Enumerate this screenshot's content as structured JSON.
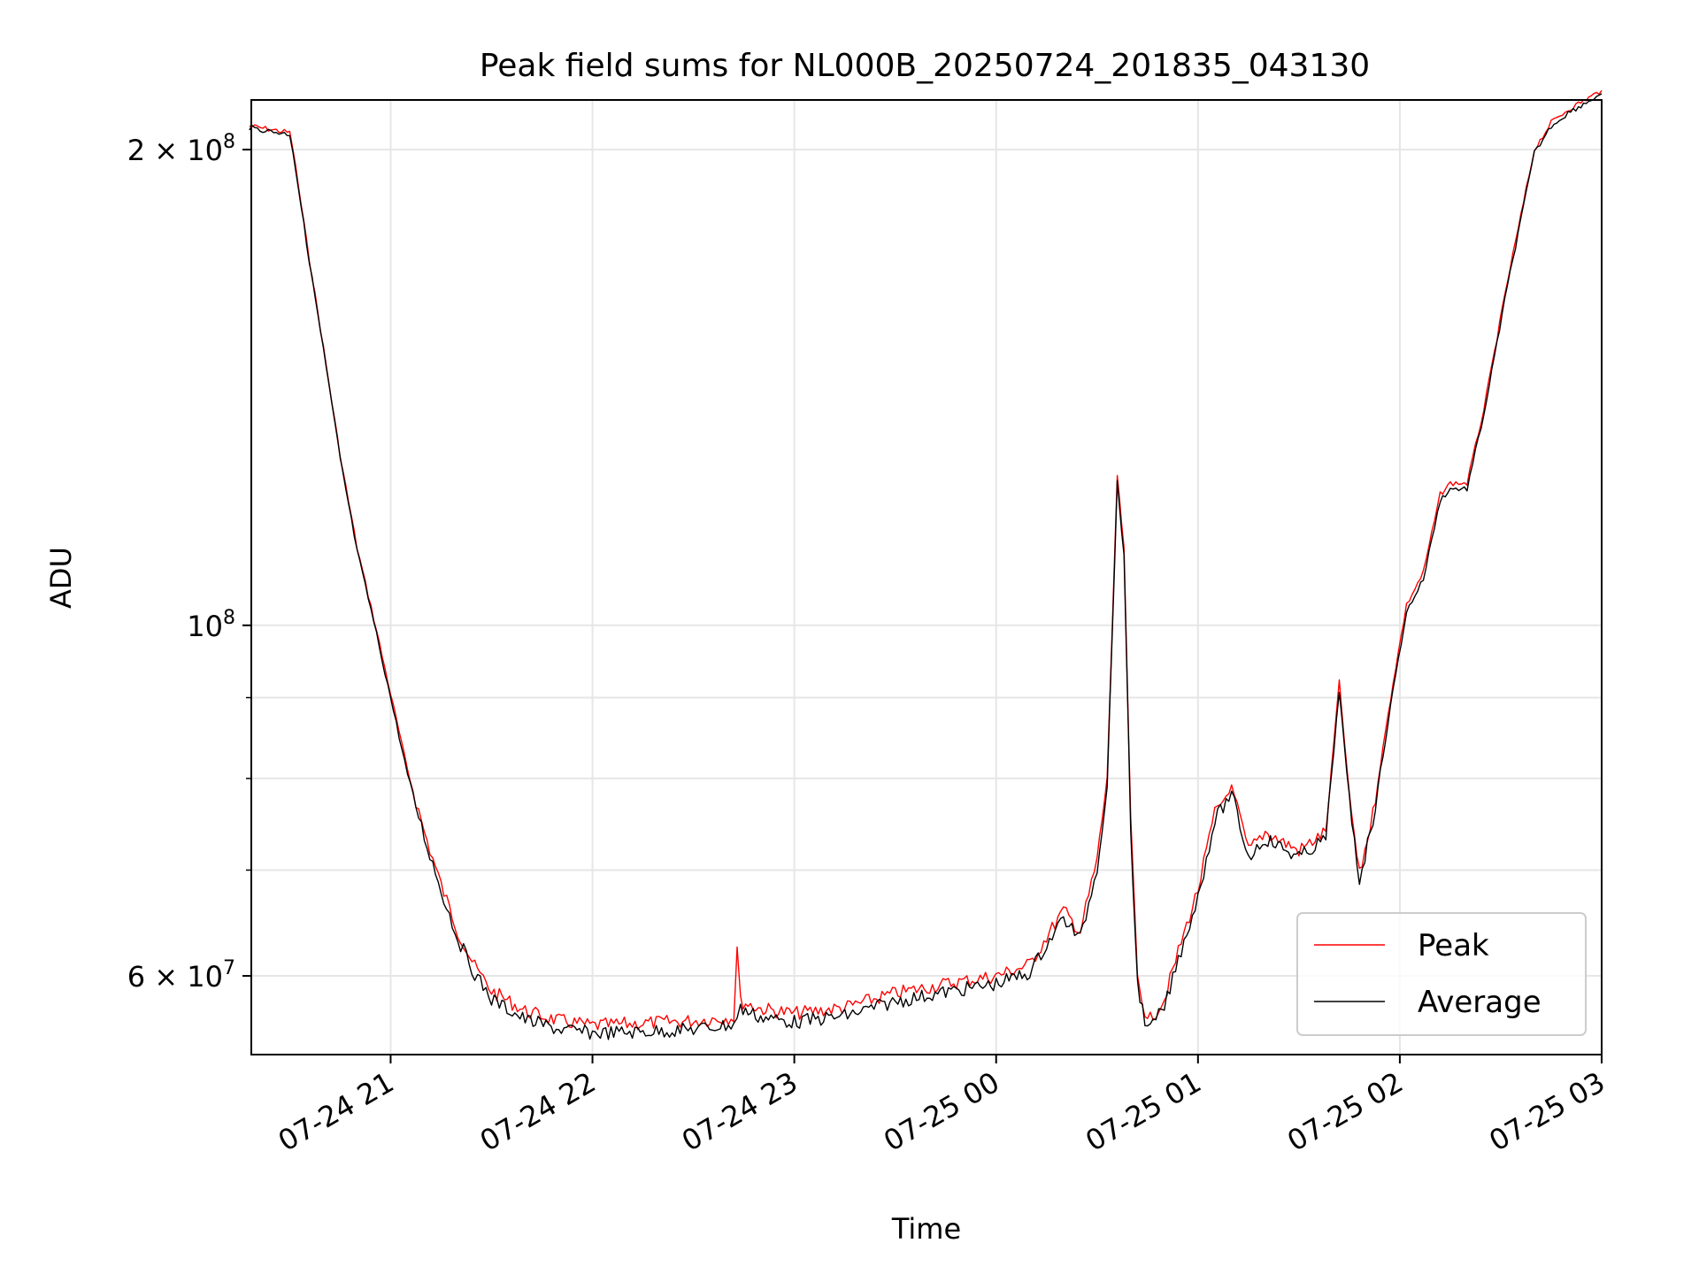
{
  "chart_data": {
    "type": "line",
    "title": "Peak field sums for NL000B_20250724_201835_043130",
    "xlabel": "Time",
    "ylabel": "ADU",
    "y_scale": "log",
    "x_range": [
      "2025-07-24 20:18:35",
      "2025-07-25 03:00:00"
    ],
    "y_range": [
      53500000,
      215000000
    ],
    "grid": true,
    "legend_position": "lower right",
    "x_ticks": [
      {
        "value": "2025-07-24 21:00",
        "label": "07-24 21"
      },
      {
        "value": "2025-07-24 22:00",
        "label": "07-24 22"
      },
      {
        "value": "2025-07-24 23:00",
        "label": "07-24 23"
      },
      {
        "value": "2025-07-25 00:00",
        "label": "07-25 00"
      },
      {
        "value": "2025-07-25 01:00",
        "label": "07-25 01"
      },
      {
        "value": "2025-07-25 02:00",
        "label": "07-25 02"
      },
      {
        "value": "2025-07-25 03:00",
        "label": "07-25 03"
      }
    ],
    "y_major_ticks": [
      {
        "value": 100000000,
        "base": "10",
        "exp": "8",
        "coef": ""
      },
      {
        "value": 200000000,
        "base": "10",
        "exp": "8",
        "coef": "2 × "
      },
      {
        "value": 60000000,
        "base": "10",
        "exp": "7",
        "coef": "6 × "
      }
    ],
    "y_minor_gridlines": [
      70000000,
      80000000,
      90000000
    ],
    "series": [
      {
        "name": "Peak",
        "color": "#ff0000",
        "x": [
          "2025-07-24 20:18",
          "2025-07-24 20:30",
          "2025-07-24 20:31",
          "2025-07-24 20:35",
          "2025-07-24 20:40",
          "2025-07-24 20:45",
          "2025-07-24 20:50",
          "2025-07-24 20:55",
          "2025-07-24 21:00",
          "2025-07-24 21:05",
          "2025-07-24 21:10",
          "2025-07-24 21:15",
          "2025-07-24 21:20",
          "2025-07-24 21:25",
          "2025-07-24 21:30",
          "2025-07-24 21:40",
          "2025-07-24 21:50",
          "2025-07-24 22:00",
          "2025-07-24 22:15",
          "2025-07-24 22:30",
          "2025-07-24 22:42",
          "2025-07-24 22:43",
          "2025-07-24 22:44",
          "2025-07-24 22:50",
          "2025-07-24 23:00",
          "2025-07-24 23:15",
          "2025-07-24 23:30",
          "2025-07-24 23:45",
          "2025-07-25 00:00",
          "2025-07-25 00:10",
          "2025-07-25 00:15",
          "2025-07-25 00:20",
          "2025-07-25 00:25",
          "2025-07-25 00:30",
          "2025-07-25 00:33",
          "2025-07-25 00:36",
          "2025-07-25 00:38",
          "2025-07-25 00:40",
          "2025-07-25 00:42",
          "2025-07-25 00:45",
          "2025-07-25 00:50",
          "2025-07-25 00:55",
          "2025-07-25 01:00",
          "2025-07-25 01:05",
          "2025-07-25 01:10",
          "2025-07-25 01:15",
          "2025-07-25 01:20",
          "2025-07-25 01:30",
          "2025-07-25 01:38",
          "2025-07-25 01:42",
          "2025-07-25 01:45",
          "2025-07-25 01:48",
          "2025-07-25 01:52",
          "2025-07-25 01:58",
          "2025-07-25 02:02",
          "2025-07-25 02:07",
          "2025-07-25 02:12",
          "2025-07-25 02:15",
          "2025-07-25 02:20",
          "2025-07-25 02:25",
          "2025-07-25 02:32",
          "2025-07-25 02:40",
          "2025-07-25 02:45",
          "2025-07-25 02:50",
          "2025-07-25 03:00"
        ],
        "values": [
          207000000,
          205000000,
          200000000,
          175000000,
          150000000,
          128000000,
          112000000,
          101000000,
          90500000,
          81000000,
          74000000,
          68500000,
          64000000,
          60800000,
          58700000,
          57000000,
          56200000,
          55800000,
          56000000,
          56200000,
          56500000,
          62500000,
          57800000,
          57200000,
          56800000,
          57300000,
          58500000,
          59300000,
          60000000,
          61000000,
          63500000,
          66000000,
          64000000,
          71000000,
          80000000,
          124000000,
          112000000,
          75000000,
          60000000,
          56000000,
          58000000,
          63000000,
          68000000,
          76000000,
          79000000,
          72000000,
          74000000,
          72000000,
          74000000,
          92000000,
          78000000,
          69500000,
          76000000,
          92000000,
          103000000,
          108000000,
          121000000,
          123000000,
          123000000,
          137000000,
          165000000,
          200000000,
          208000000,
          212000000,
          218000000
        ]
      },
      {
        "name": "Average",
        "color": "#000000",
        "x": [
          "2025-07-24 20:18",
          "2025-07-24 20:30",
          "2025-07-24 20:31",
          "2025-07-24 20:35",
          "2025-07-24 20:40",
          "2025-07-24 20:45",
          "2025-07-24 20:50",
          "2025-07-24 20:55",
          "2025-07-24 21:00",
          "2025-07-24 21:05",
          "2025-07-24 21:10",
          "2025-07-24 21:15",
          "2025-07-24 21:20",
          "2025-07-24 21:25",
          "2025-07-24 21:30",
          "2025-07-24 21:40",
          "2025-07-24 21:50",
          "2025-07-24 22:00",
          "2025-07-24 22:15",
          "2025-07-24 22:30",
          "2025-07-24 22:42",
          "2025-07-24 22:43",
          "2025-07-24 22:44",
          "2025-07-24 22:50",
          "2025-07-24 23:00",
          "2025-07-24 23:15",
          "2025-07-24 23:30",
          "2025-07-24 23:45",
          "2025-07-25 00:00",
          "2025-07-25 00:10",
          "2025-07-25 00:15",
          "2025-07-25 00:20",
          "2025-07-25 00:25",
          "2025-07-25 00:30",
          "2025-07-25 00:33",
          "2025-07-25 00:36",
          "2025-07-25 00:38",
          "2025-07-25 00:40",
          "2025-07-25 00:42",
          "2025-07-25 00:45",
          "2025-07-25 00:50",
          "2025-07-25 00:55",
          "2025-07-25 01:00",
          "2025-07-25 01:05",
          "2025-07-25 01:10",
          "2025-07-25 01:15",
          "2025-07-25 01:20",
          "2025-07-25 01:30",
          "2025-07-25 01:38",
          "2025-07-25 01:42",
          "2025-07-25 01:45",
          "2025-07-25 01:48",
          "2025-07-25 01:52",
          "2025-07-25 01:58",
          "2025-07-25 02:02",
          "2025-07-25 02:07",
          "2025-07-25 02:12",
          "2025-07-25 02:15",
          "2025-07-25 02:20",
          "2025-07-25 02:25",
          "2025-07-25 02:32",
          "2025-07-25 02:40",
          "2025-07-25 02:45",
          "2025-07-25 02:50",
          "2025-07-25 03:00"
        ],
        "values": [
          206500000,
          204500000,
          199500000,
          174500000,
          149500000,
          127500000,
          111500000,
          100500000,
          90000000,
          80500000,
          73500000,
          68000000,
          63300000,
          60200000,
          58000000,
          56300000,
          55500000,
          55200000,
          55300000,
          55500000,
          55900000,
          56500000,
          57200000,
          56500000,
          56100000,
          56600000,
          57800000,
          58600000,
          59300000,
          60300000,
          62800000,
          65300000,
          63300000,
          70300000,
          79200000,
          123000000,
          111000000,
          74200000,
          59300000,
          55300000,
          57300000,
          62300000,
          67300000,
          75300000,
          78300000,
          71300000,
          73300000,
          71300000,
          73300000,
          91000000,
          77300000,
          69000000,
          75300000,
          91000000,
          102000000,
          107000000,
          120000000,
          122000000,
          122000000,
          136000000,
          164000000,
          199000000,
          207000000,
          211000000,
          217000000
        ]
      }
    ]
  }
}
